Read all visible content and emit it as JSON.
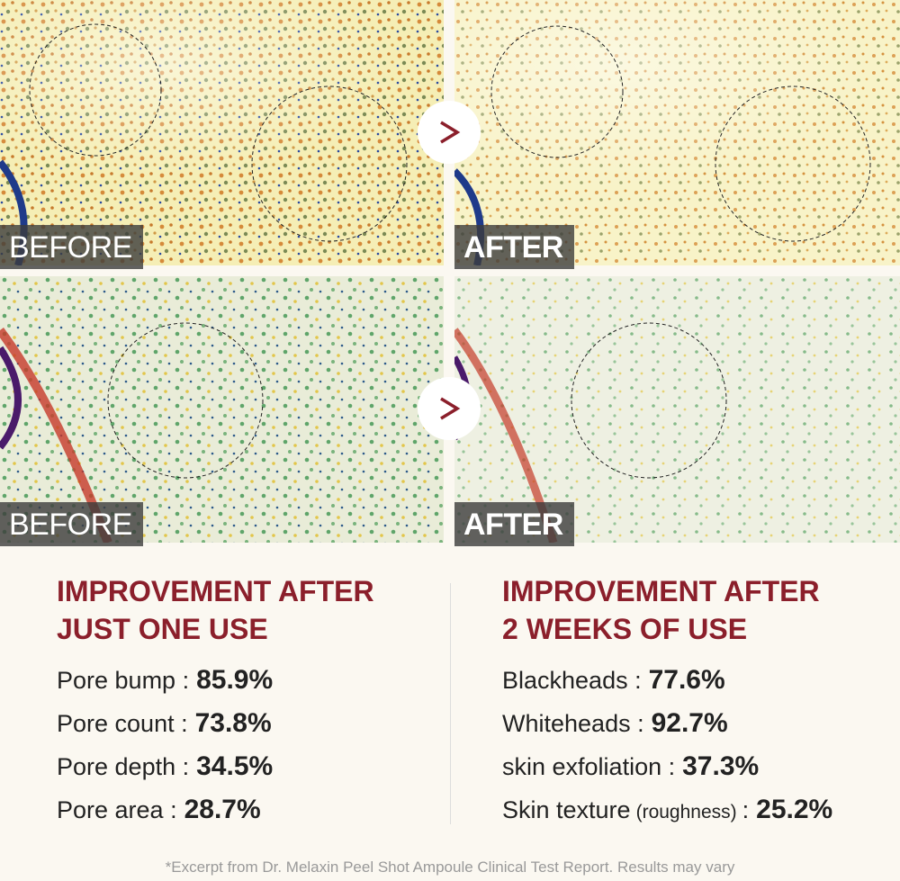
{
  "panels": [
    {
      "label": "BEFORE"
    },
    {
      "label": "AFTER"
    },
    {
      "label": "BEFORE"
    },
    {
      "label": "AFTER"
    }
  ],
  "columns": [
    {
      "heading": [
        "IMPROVEMENT AFTER",
        "JUST ONE USE"
      ],
      "items": [
        {
          "label": "Pore bump :",
          "value": "85.9%"
        },
        {
          "label": "Pore count :",
          "value": "73.8%"
        },
        {
          "label": "Pore depth :",
          "value": "34.5%"
        },
        {
          "label": "Pore area :",
          "value": "28.7%"
        }
      ]
    },
    {
      "heading": [
        "IMPROVEMENT AFTER",
        "2 WEEKS OF USE"
      ],
      "items": [
        {
          "label": "Blackheads :",
          "value": "77.6%"
        },
        {
          "label": "Whiteheads :",
          "value": "92.7%"
        },
        {
          "label": "skin exfoliation :",
          "value": "37.3%"
        },
        {
          "label": "Skin texture",
          "note": "(roughness)",
          "sep": ":",
          "value": "25.2%"
        }
      ]
    }
  ],
  "footnote": "*Excerpt from Dr. Melaxin Peel Shot Ampoule Clinical Test Report. Results may vary"
}
